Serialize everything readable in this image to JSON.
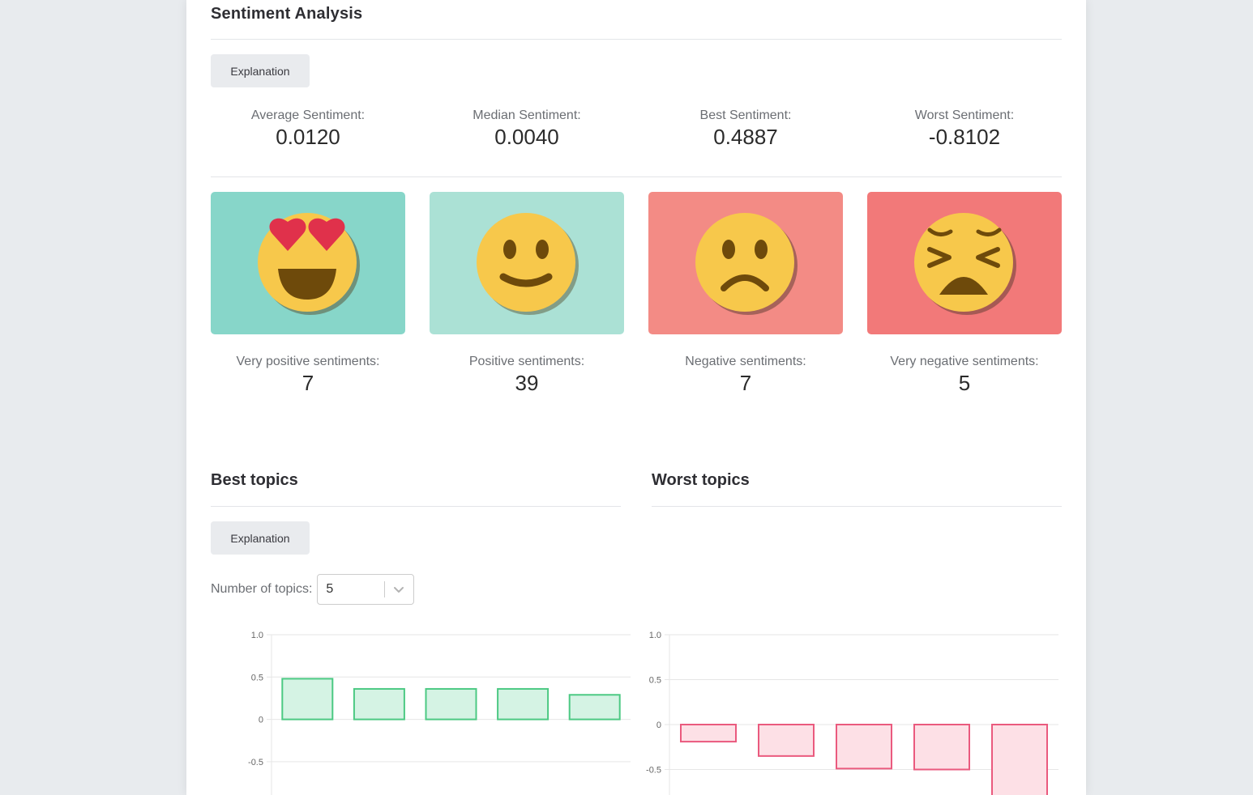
{
  "sentiment": {
    "title": "Sentiment Analysis",
    "explanation_label": "Explanation",
    "stats": [
      {
        "label": "Average Sentiment:",
        "value": "0.0120"
      },
      {
        "label": "Median Sentiment:",
        "value": "0.0040"
      },
      {
        "label": "Best Sentiment:",
        "value": "0.4887"
      },
      {
        "label": "Worst Sentiment:",
        "value": "-0.8102"
      }
    ],
    "tiles": [
      {
        "icon": "heart-eyes-emoji-icon",
        "color": "#87d6c9",
        "label": "Very positive sentiments:",
        "count": "7"
      },
      {
        "icon": "smiling-face-emoji-icon",
        "color": "#abe1d5",
        "label": "Positive sentiments:",
        "count": "39"
      },
      {
        "icon": "frowning-face-emoji-icon",
        "color": "#f38b85",
        "label": "Negative sentiments:",
        "count": "7"
      },
      {
        "icon": "tired-face-emoji-icon",
        "color": "#f27979",
        "label": "Very negative sentiments:",
        "count": "5"
      }
    ]
  },
  "best_topics": {
    "title": "Best topics",
    "explanation_label": "Explanation",
    "number_label": "Number of topics:",
    "number_value": "5"
  },
  "worst_topics": {
    "title": "Worst topics"
  },
  "chart_data": [
    {
      "type": "bar",
      "title": "Best topics",
      "categories": [
        "",
        "",
        "",
        "",
        ""
      ],
      "values": [
        0.48,
        0.36,
        0.36,
        0.36,
        0.29
      ],
      "yticks": [
        "1.0",
        "0.5",
        "0",
        "-0.5"
      ],
      "ylim": [
        -0.9,
        1.0
      ],
      "bar_fill": "#d5f3e4",
      "bar_stroke": "#4cc983"
    },
    {
      "type": "bar",
      "title": "Worst topics",
      "categories": [
        "",
        "",
        "",
        "",
        ""
      ],
      "values": [
        -0.19,
        -0.35,
        -0.49,
        -0.5,
        -0.81
      ],
      "yticks": [
        "1.0",
        "0.5",
        "0",
        "-0.5"
      ],
      "ylim": [
        -0.8,
        1.0
      ],
      "bar_fill": "#fde0e6",
      "bar_stroke": "#ea5a7e"
    }
  ]
}
